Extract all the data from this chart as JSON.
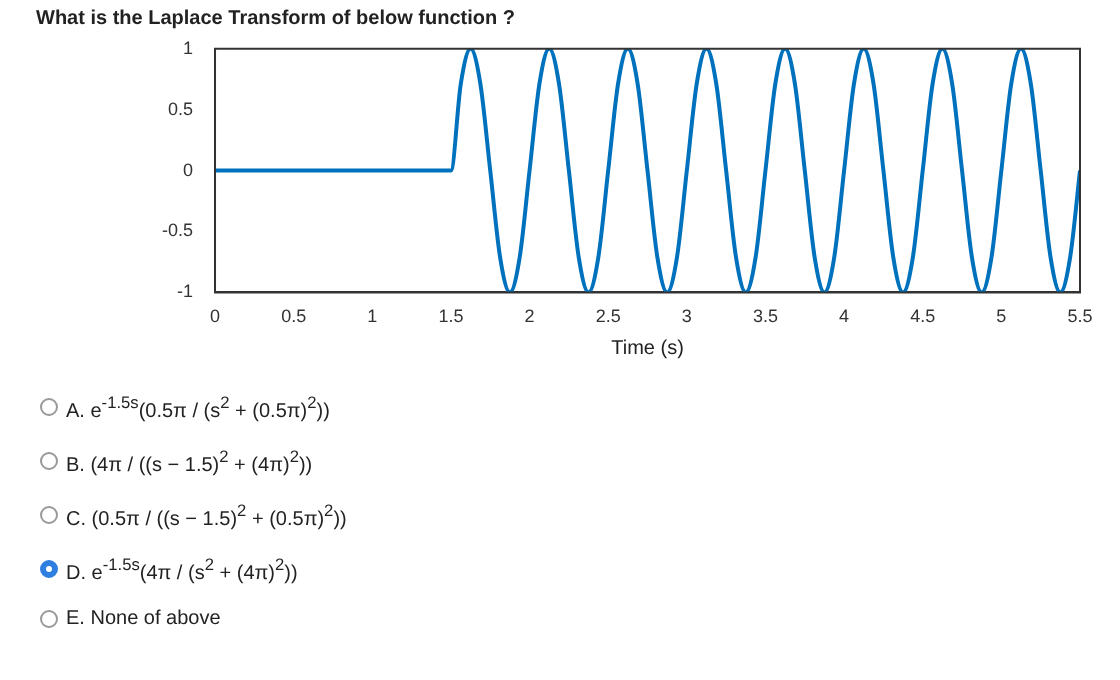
{
  "chart_data": {
    "type": "line",
    "title": "What is the Laplace Transform of below function ?",
    "xlabel": "Time (s)",
    "xlim": [
      0,
      5.5
    ],
    "xticks": [
      0,
      0.5,
      1,
      1.5,
      2,
      2.5,
      3,
      3.5,
      4,
      4.5,
      5,
      5.5
    ],
    "ylim": [
      -1,
      1
    ],
    "yticks": [
      -1,
      -0.5,
      0,
      0.5,
      1
    ],
    "grid": false,
    "legend": false,
    "marker": "none",
    "line_style": "solid",
    "series": [
      {
        "color": "#0072bd",
        "x": [
          0,
          1.5,
          1.5625,
          1.625,
          1.6875,
          1.75,
          1.8125,
          1.875,
          1.9375,
          2,
          2.0625,
          2.125,
          2.1875,
          2.25,
          2.3125,
          2.375,
          2.4375,
          2.5,
          2.5625,
          2.625,
          2.6875,
          2.75,
          2.8125,
          2.875,
          2.9375,
          3,
          3.0625,
          3.125,
          3.1875,
          3.25,
          3.3125,
          3.375,
          3.4375,
          3.5,
          3.5625,
          3.625,
          3.6875,
          3.75,
          3.8125,
          3.875,
          3.9375,
          4,
          4.0625,
          4.125,
          4.1875,
          4.25,
          4.3125,
          4.375,
          4.4375,
          4.5,
          4.5625,
          4.625,
          4.6875,
          4.75,
          4.8125,
          4.875,
          4.9375,
          5,
          5.0625,
          5.125,
          5.1875,
          5.25,
          5.3125,
          5.375,
          5.4375,
          5.5
        ],
        "values": [
          0,
          0,
          0.71,
          1,
          0.71,
          0,
          -0.71,
          -1,
          -0.71,
          0,
          0.71,
          1,
          0.71,
          0,
          -0.71,
          -1,
          -0.71,
          0,
          0.71,
          1,
          0.71,
          0,
          -0.71,
          -1,
          -0.71,
          0,
          0.71,
          1,
          0.71,
          0,
          -0.71,
          -1,
          -0.71,
          0,
          0.71,
          1,
          0.71,
          0,
          -0.71,
          -1,
          -0.71,
          0,
          0.71,
          1,
          0.71,
          0,
          -0.71,
          -1,
          -0.71,
          0,
          0.71,
          1,
          0.71,
          0,
          -0.71,
          -1,
          -0.71,
          0,
          0.71,
          1,
          0.71,
          0,
          -0.71,
          -1,
          -0.71,
          0
        ]
      }
    ],
    "annotations": [
      "A. e$^{-1.5s}$(0.5π / (s$^{2}$ + (0.5π)$^{2}$))",
      "B. (4π / ((s − 1.5)$^{2}$ + (4π)$^{2}$))",
      "C. (0.5π / ((s − 1.5)$^{2}$ + (0.5π)$^{2}$))",
      "D. e$^{-1.5s}$(4π / (s$^{2}$ + (4π)$^{2}$))",
      "E. None of above"
    ]
  }
}
